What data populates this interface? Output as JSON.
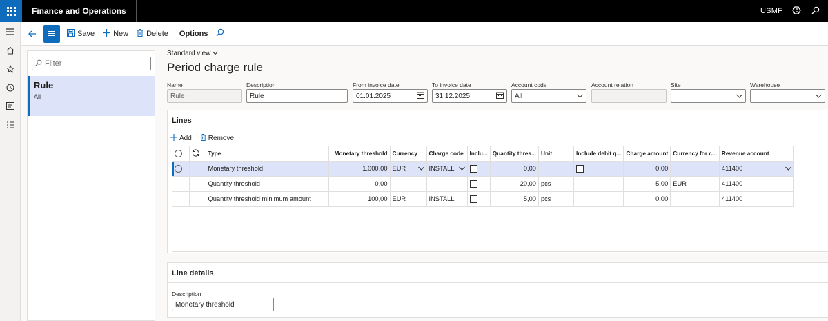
{
  "app": {
    "title": "Finance and Operations",
    "company": "USMF"
  },
  "actions": {
    "save": "Save",
    "new": "New",
    "delete": "Delete",
    "options": "Options"
  },
  "list": {
    "filter_placeholder": "Filter",
    "item_title": "Rule",
    "item_sub": "All"
  },
  "page": {
    "view": "Standard view",
    "title": "Period charge rule"
  },
  "header": {
    "name": {
      "label": "Name",
      "value": "Rule"
    },
    "description": {
      "label": "Description",
      "value": "Rule"
    },
    "from_date": {
      "label": "From invoice date",
      "value": "01.01.2025"
    },
    "to_date": {
      "label": "To invoice date",
      "value": "31.12.2025"
    },
    "account_code": {
      "label": "Account code",
      "value": "All"
    },
    "account_relation": {
      "label": "Account relation",
      "value": ""
    },
    "site": {
      "label": "Site",
      "value": ""
    },
    "warehouse": {
      "label": "Warehouse",
      "value": ""
    }
  },
  "lines": {
    "title": "Lines",
    "add": "Add",
    "remove": "Remove",
    "columns": [
      "Type",
      "Monetary threshold",
      "Currency",
      "Charge code",
      "Inclu...",
      "Quantity thres...",
      "Unit",
      "Include debit q...",
      "Charge amount",
      "Currency for c...",
      "Revenue account"
    ],
    "rows": [
      {
        "type": "Monetary threshold",
        "monetary": "1.000,00",
        "currency": "EUR",
        "charge_code": "INSTALL",
        "qty": "0,00",
        "unit": "",
        "charge_amount": "0,00",
        "cur_charge": "",
        "revenue": "411400"
      },
      {
        "type": "Quantity threshold",
        "monetary": "0,00",
        "currency": "",
        "charge_code": "",
        "qty": "20,00",
        "unit": "pcs",
        "charge_amount": "5,00",
        "cur_charge": "EUR",
        "revenue": "411400"
      },
      {
        "type": "Quantity threshold minimum amount",
        "monetary": "100,00",
        "currency": "EUR",
        "charge_code": "INSTALL",
        "qty": "5,00",
        "unit": "pcs",
        "charge_amount": "0,00",
        "cur_charge": "",
        "revenue": "411400"
      }
    ]
  },
  "details": {
    "title": "Line details",
    "desc_label": "Description",
    "desc_value": "Monetary threshold"
  },
  "colors": {
    "accent": "#0f6cbd",
    "selected_row": "#dde4fa",
    "topbar": "#000000"
  }
}
